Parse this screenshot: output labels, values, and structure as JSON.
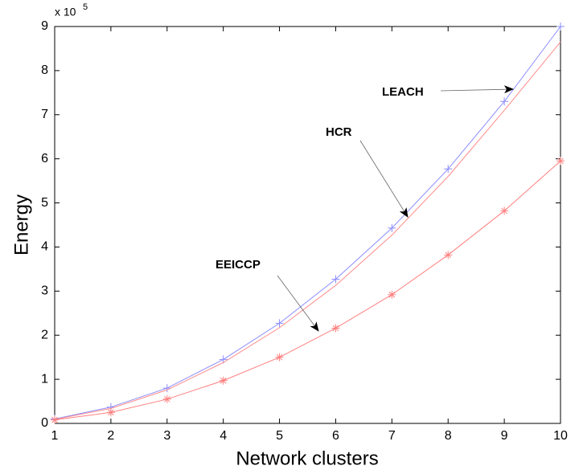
{
  "chart_data": {
    "type": "line",
    "x_label": "Network clusters",
    "y_label": "Energy",
    "y_multiplier": {
      "base": "x 10",
      "exponent": "5"
    },
    "x": [
      1,
      2,
      3,
      4,
      5,
      6,
      7,
      8,
      9,
      10
    ],
    "series": [
      {
        "name": "LEACH",
        "color": "#8c8cff",
        "marker": "plus",
        "values": [
          0.1,
          0.37,
          0.8,
          1.45,
          2.27,
          3.27,
          4.43,
          5.77,
          7.3,
          9.0
        ]
      },
      {
        "name": "HCR",
        "color": "#ff8c8c",
        "marker": "none",
        "values": [
          0.09,
          0.34,
          0.76,
          1.38,
          2.17,
          3.13,
          4.27,
          5.6,
          7.1,
          8.65
        ]
      },
      {
        "name": "EEICCP",
        "color": "#ff8080",
        "marker": "star",
        "values": [
          0.08,
          0.25,
          0.55,
          0.97,
          1.5,
          2.16,
          2.92,
          3.82,
          4.82,
          5.95
        ]
      }
    ],
    "annotations": [
      "LEACH",
      "HCR",
      "EEICCP"
    ],
    "xlim": [
      1,
      10
    ],
    "ylim": [
      0,
      9
    ],
    "xticks": [
      1,
      2,
      3,
      4,
      5,
      6,
      7,
      8,
      9,
      10
    ],
    "yticks": [
      0,
      1,
      2,
      3,
      4,
      5,
      6,
      7,
      8,
      9
    ]
  }
}
